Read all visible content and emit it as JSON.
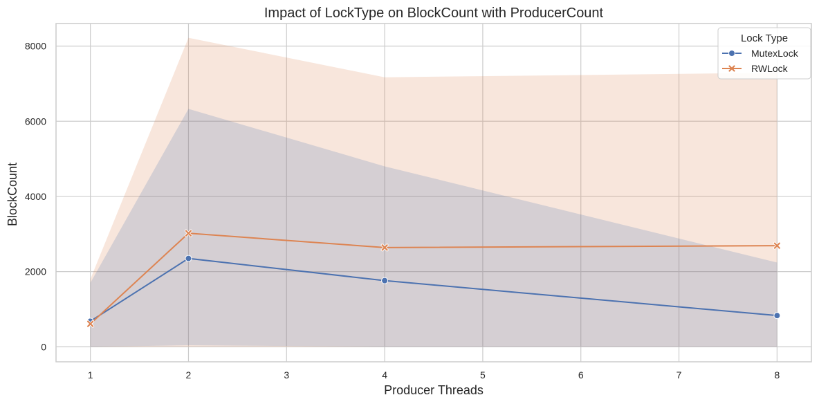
{
  "chart_data": {
    "type": "line",
    "title": "Impact of LockType on BlockCount with ProducerCount",
    "xlabel": "Producer Threads",
    "ylabel": "BlockCount",
    "x_ticks": [
      1,
      2,
      3,
      4,
      5,
      6,
      7,
      8
    ],
    "y_ticks": [
      0,
      2000,
      4000,
      6000,
      8000
    ],
    "xlim": [
      0.65,
      8.35
    ],
    "ylim": [
      -400,
      8600
    ],
    "grid": true,
    "legend": {
      "title": "Lock Type",
      "placement": "top-right"
    },
    "series": [
      {
        "name": "MutexLock",
        "color": "#4c72b0",
        "marker": "circle",
        "x": [
          1,
          2,
          4,
          8
        ],
        "values": [
          680,
          2350,
          1760,
          830
        ],
        "ci_lower": [
          0,
          40,
          0,
          0
        ],
        "ci_upper": [
          1700,
          6330,
          4800,
          2240
        ]
      },
      {
        "name": "RWLock",
        "color": "#dd8452",
        "marker": "x",
        "x": [
          1,
          2,
          4,
          8
        ],
        "values": [
          610,
          3020,
          2640,
          2690
        ],
        "ci_lower": [
          0,
          0,
          0,
          0
        ],
        "ci_upper": [
          1800,
          8220,
          7170,
          7290
        ]
      }
    ]
  }
}
